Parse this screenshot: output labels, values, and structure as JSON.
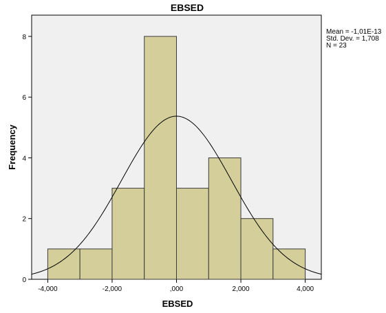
{
  "chart_data": {
    "type": "bar",
    "title": "EBSED",
    "xlabel": "EBSED",
    "ylabel": "Frequency",
    "bins": [
      {
        "x0": -4000,
        "x1": -3000,
        "count": 1
      },
      {
        "x0": -3000,
        "x1": -2000,
        "count": 1
      },
      {
        "x0": -2000,
        "x1": -1000,
        "count": 3
      },
      {
        "x0": -1000,
        "x1": 0,
        "count": 8
      },
      {
        "x0": 0,
        "x1": 1000,
        "count": 3
      },
      {
        "x0": 1000,
        "x1": 2000,
        "count": 4
      },
      {
        "x0": 2000,
        "x1": 3000,
        "count": 2
      },
      {
        "x0": 3000,
        "x1": 4000,
        "count": 1
      }
    ],
    "x_ticks": [
      {
        "value": -4000,
        "label": "-4,000"
      },
      {
        "value": -2000,
        "label": "-2,000"
      },
      {
        "value": 0,
        "label": ",000"
      },
      {
        "value": 2000,
        "label": "2,000"
      },
      {
        "value": 4000,
        "label": "4,000"
      }
    ],
    "y_ticks": [
      {
        "value": 0,
        "label": "0"
      },
      {
        "value": 2,
        "label": "2"
      },
      {
        "value": 4,
        "label": "4"
      },
      {
        "value": 6,
        "label": "6"
      },
      {
        "value": 8,
        "label": "8"
      }
    ],
    "xlim": [
      -4500,
      4500
    ],
    "ylim": [
      0,
      8.7
    ],
    "normal_curve": {
      "mean": -1.01e-13,
      "sd": 1708,
      "n": 23,
      "bin_width": 1000
    },
    "stats_lines": [
      "Mean = -1,01E-13",
      "Std. Dev. = 1,708",
      "N = 23"
    ],
    "colors": {
      "plot_background": "#f0f0f0",
      "bar_fill": "#d4cf9a",
      "bar_stroke": "#3a3a3a",
      "curve": "#000000"
    },
    "grid": false,
    "legend": "none"
  }
}
